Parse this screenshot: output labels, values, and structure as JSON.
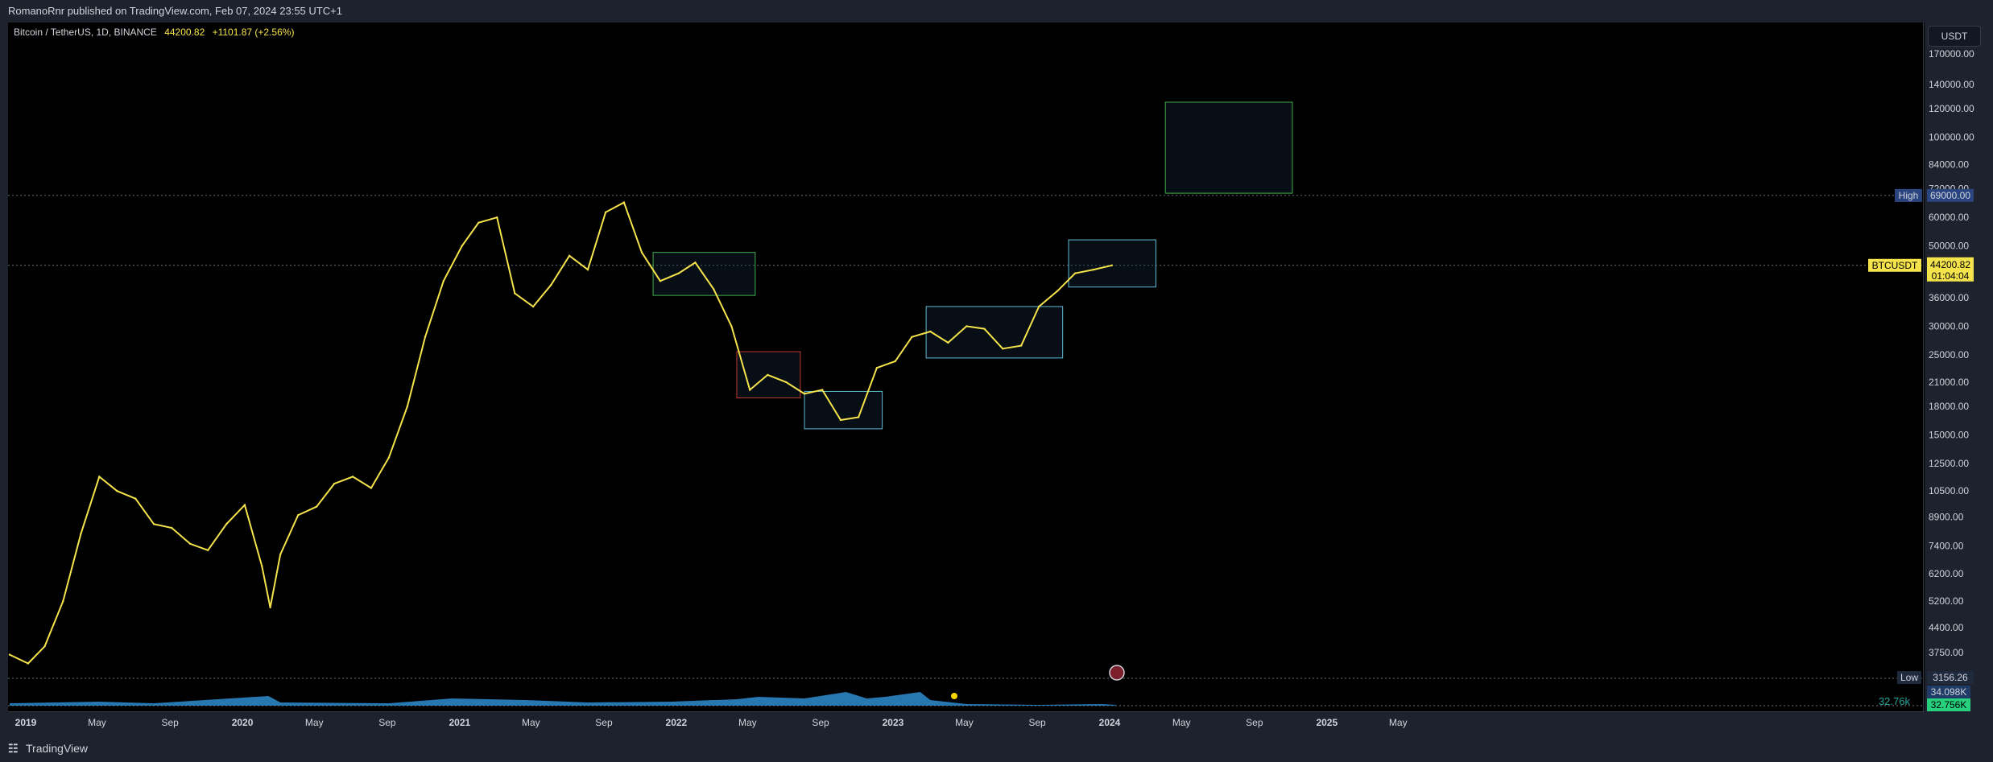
{
  "header": {
    "published_text": "RomanoRnr published on TradingView.com, Feb 07, 2024 23:55 UTC+1"
  },
  "footer": {
    "brand": "TradingView"
  },
  "legend": {
    "symbol": "Bitcoin / TetherUS, 1D, BINANCE",
    "price": "44200.82",
    "change": "+1101.87 (+2.56%)"
  },
  "currency_button": "USDT",
  "markers": {
    "high_label": "High",
    "high_value": "69000.00",
    "low_label": "Low",
    "low_value": "3156.26",
    "symbol_label": "BTCUSDT",
    "last_price": "44200.82",
    "countdown": "01:04:04",
    "volume_value": "34.098K",
    "volume_ma_value": "32.756K",
    "volume_left_label": "32.76k"
  },
  "colors": {
    "price_line": "#f5e34b",
    "volume": "#2e8ccf",
    "green_box": "#3fae49",
    "cyan_box": "#5fbcd3",
    "red_box": "#c0392b"
  },
  "chart_data": {
    "type": "line",
    "series": [
      {
        "x": [
          "2019-01",
          "2019-02",
          "2019-03",
          "2019-04",
          "2019-05",
          "2019-06",
          "2019-07",
          "2019-08",
          "2019-09",
          "2019-10",
          "2019-11",
          "2019-12",
          "2020-01",
          "2020-02",
          "2020-03",
          "2020-03-15",
          "2020-04",
          "2020-05",
          "2020-06",
          "2020-07",
          "2020-08",
          "2020-09",
          "2020-10",
          "2020-11",
          "2020-12",
          "2021-01",
          "2021-02",
          "2021-03",
          "2021-04",
          "2021-05",
          "2021-06",
          "2021-07",
          "2021-08",
          "2021-09",
          "2021-10",
          "2021-11",
          "2021-12",
          "2022-01",
          "2022-02",
          "2022-03",
          "2022-04",
          "2022-05",
          "2022-06",
          "2022-07",
          "2022-08",
          "2022-09",
          "2022-10",
          "2022-11",
          "2022-12",
          "2023-01",
          "2023-02",
          "2023-03",
          "2023-04",
          "2023-05",
          "2023-06",
          "2023-07",
          "2023-08",
          "2023-09",
          "2023-10",
          "2023-11",
          "2023-12",
          "2024-01",
          "2024-02"
        ],
        "y": [
          3700,
          3500,
          3900,
          5200,
          8000,
          11500,
          10500,
          10000,
          8500,
          8300,
          7500,
          7200,
          8500,
          9600,
          6500,
          5000,
          7000,
          9000,
          9500,
          11000,
          11500,
          10700,
          13000,
          18000,
          28000,
          40000,
          50000,
          58000,
          60000,
          37000,
          34000,
          39000,
          47000,
          43000,
          62000,
          66000,
          48000,
          40000,
          42000,
          45000,
          38000,
          30000,
          20000,
          22000,
          21000,
          19500,
          20000,
          16500,
          16800,
          23000,
          24000,
          28000,
          29000,
          27000,
          30000,
          29500,
          26000,
          26500,
          34000,
          37500,
          42000,
          43000,
          44200
        ]
      }
    ],
    "ylabel": "USDT",
    "log_scale": true,
    "ylim": [
      3000,
      190000
    ],
    "y_ticks": [
      "170000.00",
      "140000.00",
      "120000.00",
      "100000.00",
      "84000.00",
      "72000.00",
      "60000.00",
      "50000.00",
      "42000.00",
      "36000.00",
      "30000.00",
      "25000.00",
      "21000.00",
      "18000.00",
      "15000.00",
      "12500.00",
      "10500.00",
      "8900.00",
      "7400.00",
      "6200.00",
      "5200.00",
      "4400.00",
      "3750.00"
    ],
    "x_ticks": [
      "2019",
      "May",
      "Sep",
      "2020",
      "May",
      "Sep",
      "2021",
      "May",
      "Sep",
      "2022",
      "May",
      "Sep",
      "2023",
      "May",
      "Sep",
      "2024",
      "May",
      "Sep",
      "2025",
      "May"
    ],
    "zones": [
      {
        "color": "green",
        "x": [
          "2021-12-20",
          "2022-06-10"
        ],
        "y": [
          36500,
          48000
        ]
      },
      {
        "color": "red",
        "x": [
          "2022-05-10",
          "2022-08-25"
        ],
        "y": [
          19000,
          25500
        ]
      },
      {
        "color": "cyan",
        "x": [
          "2022-09-01",
          "2023-01-10"
        ],
        "y": [
          15600,
          19800
        ]
      },
      {
        "color": "cyan",
        "x": [
          "2023-03-25",
          "2023-11-10"
        ],
        "y": [
          24500,
          34000
        ]
      },
      {
        "color": "cyan",
        "x": [
          "2023-11-20",
          "2024-04-15"
        ],
        "y": [
          38500,
          52000
        ]
      },
      {
        "color": "green",
        "x": [
          "2024-05-01",
          "2024-12-01"
        ],
        "y": [
          70000,
          125000
        ]
      }
    ],
    "grid": false,
    "legend": "top-left"
  }
}
